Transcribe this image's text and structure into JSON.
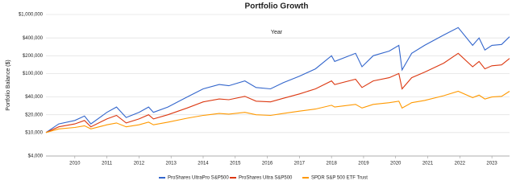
{
  "chart_data": {
    "type": "line",
    "title": "Portfolio Growth",
    "x_label": "Year",
    "y_label": "Portfolio Balance ($)",
    "log_y": true,
    "grid": true,
    "legend": "bottom",
    "xlim": [
      2009.1,
      2023.55
    ],
    "xticks": [
      2010,
      2011,
      2012,
      2013,
      2014,
      2015,
      2016,
      2017,
      2018,
      2019,
      2020,
      2021,
      2022,
      2023
    ],
    "ylim": [
      4000,
      1000000
    ],
    "yticks": [
      {
        "value": 4000,
        "label": "$4,000"
      },
      {
        "value": 10000,
        "label": "$10,000"
      },
      {
        "value": 20000,
        "label": "$20,000"
      },
      {
        "value": 40000,
        "label": "$40,000"
      },
      {
        "value": 100000,
        "label": "$100,000"
      },
      {
        "value": 200000,
        "label": "$200,000"
      },
      {
        "value": 400000,
        "label": "$400,000"
      },
      {
        "value": 1000000,
        "label": "$1,000,000"
      }
    ],
    "x": [
      2009.1,
      2009.5,
      2010.0,
      2010.3,
      2010.5,
      2011.0,
      2011.3,
      2011.6,
      2012.0,
      2012.3,
      2012.45,
      2012.9,
      2013.5,
      2014.0,
      2014.5,
      2014.8,
      2015.3,
      2015.65,
      2016.1,
      2016.5,
      2017.0,
      2017.5,
      2018.0,
      2018.1,
      2018.75,
      2018.95,
      2019.3,
      2019.8,
      2020.1,
      2020.2,
      2020.5,
      2020.9,
      2021.5,
      2021.95,
      2022.4,
      2022.6,
      2022.78,
      2023.0,
      2023.3,
      2023.55
    ],
    "series": [
      {
        "name": "ProShares UltraPro S&P500",
        "color": "#3366cc",
        "values": [
          10000,
          14000,
          16000,
          19000,
          14000,
          22000,
          27000,
          18000,
          22000,
          27000,
          22000,
          27000,
          40000,
          55000,
          65000,
          62000,
          75000,
          58000,
          55000,
          70000,
          90000,
          120000,
          200000,
          160000,
          220000,
          130000,
          200000,
          240000,
          300000,
          115000,
          220000,
          300000,
          450000,
          600000,
          300000,
          400000,
          250000,
          300000,
          310000,
          420000
        ]
      },
      {
        "name": "ProShares Ultra S&P500",
        "color": "#dc3912",
        "values": [
          10000,
          12500,
          14000,
          16000,
          12500,
          17000,
          19500,
          14500,
          17000,
          20000,
          17000,
          20000,
          26000,
          33000,
          37000,
          36000,
          41000,
          34000,
          33000,
          38000,
          45000,
          55000,
          75000,
          65000,
          80000,
          58000,
          75000,
          85000,
          100000,
          55000,
          85000,
          105000,
          150000,
          220000,
          130000,
          160000,
          120000,
          135000,
          140000,
          180000
        ]
      },
      {
        "name": "SPDR S&P 500 ETF Trust",
        "color": "#ff9900",
        "values": [
          10000,
          11500,
          12200,
          13000,
          11500,
          13500,
          14500,
          12500,
          13500,
          15000,
          13500,
          15000,
          17500,
          19500,
          21000,
          20500,
          22000,
          20000,
          19500,
          21000,
          23000,
          25000,
          29000,
          27000,
          30000,
          26000,
          30000,
          32000,
          34000,
          26000,
          32000,
          35000,
          42000,
          50000,
          39000,
          43000,
          37000,
          40000,
          41000,
          50000
        ]
      }
    ]
  }
}
